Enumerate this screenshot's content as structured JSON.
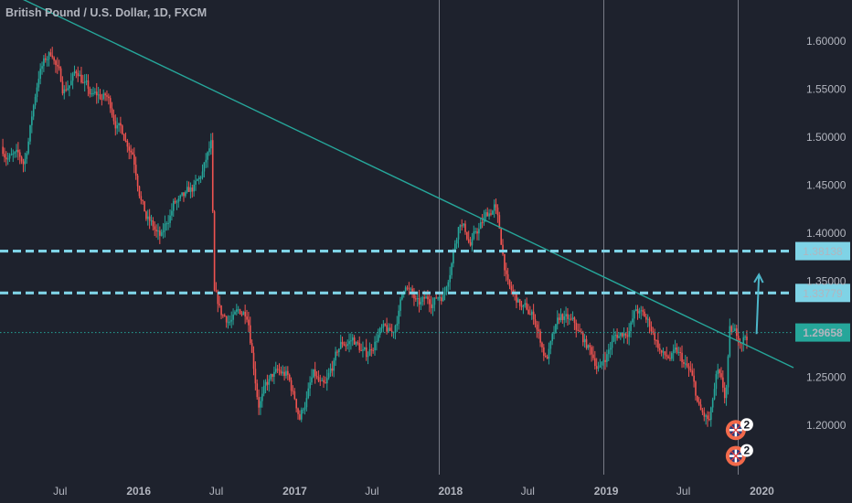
{
  "header": {
    "symbol": "British Pound / U.S. Dollar, 1D, FXCM"
  },
  "colors": {
    "background": "#1e222d",
    "up": "#26a69a",
    "down": "#ef5350",
    "trendline": "#26a69a",
    "level_lines": "#7fd3e6",
    "last_price": "#26a69a",
    "arrow": "#4db6c9",
    "axis_text": "#b2b5be"
  },
  "chart_data": {
    "type": "candlestick",
    "title": "British Pound / U.S. Dollar, 1D, FXCM",
    "ylim": [
      1.16,
      1.64
    ],
    "y_ticks": [
      "1.60000",
      "1.55000",
      "1.50000",
      "1.45000",
      "1.40000",
      "1.35000",
      "1.25000",
      "1.20000"
    ],
    "x_ticks": [
      {
        "label": "Jul",
        "date": "2015-07-01",
        "year": false
      },
      {
        "label": "2016",
        "date": "2016-01-01",
        "year": true
      },
      {
        "label": "Jul",
        "date": "2016-07-01",
        "year": false
      },
      {
        "label": "2017",
        "date": "2017-01-01",
        "year": true
      },
      {
        "label": "Jul",
        "date": "2017-07-01",
        "year": false
      },
      {
        "label": "2018",
        "date": "2018-01-01",
        "year": true
      },
      {
        "label": "Jul",
        "date": "2018-07-01",
        "year": false
      },
      {
        "label": "2019",
        "date": "2019-01-01",
        "year": true
      },
      {
        "label": "Jul",
        "date": "2019-07-01",
        "year": false
      },
      {
        "label": "2020",
        "date": "2020-01-01",
        "year": true
      }
    ],
    "price_path": [
      [
        "2015-02-15",
        1.49
      ],
      [
        "2015-04-10",
        1.47
      ],
      [
        "2015-05-15",
        1.57
      ],
      [
        "2015-06-15",
        1.59
      ],
      [
        "2015-07-10",
        1.55
      ],
      [
        "2015-08-15",
        1.57
      ],
      [
        "2015-09-15",
        1.54
      ],
      [
        "2015-10-20",
        1.54
      ],
      [
        "2015-11-20",
        1.51
      ],
      [
        "2015-12-20",
        1.49
      ],
      [
        "2016-01-20",
        1.42
      ],
      [
        "2016-02-25",
        1.39
      ],
      [
        "2016-03-25",
        1.43
      ],
      [
        "2016-04-20",
        1.43
      ],
      [
        "2016-05-25",
        1.45
      ],
      [
        "2016-06-23",
        1.49
      ],
      [
        "2016-06-27",
        1.33
      ],
      [
        "2016-07-15",
        1.31
      ],
      [
        "2016-08-15",
        1.31
      ],
      [
        "2016-09-15",
        1.32
      ],
      [
        "2016-10-10",
        1.23
      ],
      [
        "2016-11-15",
        1.25
      ],
      [
        "2016-12-15",
        1.25
      ],
      [
        "2017-01-15",
        1.21
      ],
      [
        "2017-02-15",
        1.25
      ],
      [
        "2017-03-15",
        1.23
      ],
      [
        "2017-04-20",
        1.28
      ],
      [
        "2017-05-20",
        1.29
      ],
      [
        "2017-06-20",
        1.27
      ],
      [
        "2017-07-20",
        1.3
      ],
      [
        "2017-08-20",
        1.29
      ],
      [
        "2017-09-20",
        1.35
      ],
      [
        "2017-10-20",
        1.32
      ],
      [
        "2017-11-20",
        1.33
      ],
      [
        "2017-12-20",
        1.34
      ],
      [
        "2018-01-25",
        1.42
      ],
      [
        "2018-02-20",
        1.39
      ],
      [
        "2018-03-20",
        1.41
      ],
      [
        "2018-04-17",
        1.43
      ],
      [
        "2018-05-20",
        1.34
      ],
      [
        "2018-06-20",
        1.32
      ],
      [
        "2018-07-20",
        1.31
      ],
      [
        "2018-08-15",
        1.27
      ],
      [
        "2018-09-20",
        1.31
      ],
      [
        "2018-10-20",
        1.3
      ],
      [
        "2018-11-20",
        1.28
      ],
      [
        "2018-12-20",
        1.26
      ],
      [
        "2019-01-20",
        1.29
      ],
      [
        "2019-02-20",
        1.3
      ],
      [
        "2019-03-15",
        1.32
      ],
      [
        "2019-04-20",
        1.3
      ],
      [
        "2019-05-20",
        1.27
      ],
      [
        "2019-06-20",
        1.27
      ],
      [
        "2019-07-20",
        1.25
      ],
      [
        "2019-08-12",
        1.21
      ],
      [
        "2019-09-03",
        1.2
      ],
      [
        "2019-09-20",
        1.25
      ],
      [
        "2019-10-10",
        1.22
      ],
      [
        "2019-10-20",
        1.29
      ],
      [
        "2019-11-10",
        1.29
      ],
      [
        "2019-11-28",
        1.29658
      ]
    ],
    "horizontal_levels": [
      {
        "price": 1.38138,
        "label": "1.38138"
      },
      {
        "price": 1.33779,
        "label": "1.33779"
      }
    ],
    "last_price": {
      "price": 1.29658,
      "label": "1.29658"
    },
    "trendline": [
      [
        "2015-02-10",
        1.655
      ],
      [
        "2020-03-15",
        1.26
      ]
    ],
    "vertical_markers": [
      "2017-12-05",
      "2018-12-25",
      "2019-11-05"
    ],
    "projection_arrow": {
      "from": [
        "2019-11-28",
        1.295
      ],
      "to": [
        "2019-12-25",
        1.357
      ]
    },
    "event_badges": [
      {
        "date": "2019-11-05",
        "price": 1.195,
        "count": "2"
      },
      {
        "date": "2019-11-05",
        "price": 1.168,
        "count": "2"
      }
    ]
  }
}
